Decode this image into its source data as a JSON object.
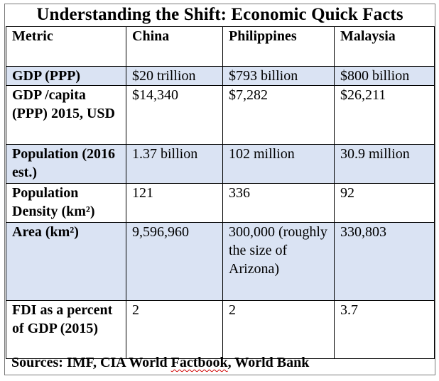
{
  "title": "Understanding the Shift: Economic Quick Facts",
  "columns": [
    "Metric",
    "China",
    "Philippines",
    "Malaysia"
  ],
  "rows": [
    {
      "metric": "GDP (PPP)",
      "china": "$20 trillion",
      "philippines": "$793 billion",
      "malaysia": "$800 billion"
    },
    {
      "metric": "GDP /capita (PPP) 2015, USD",
      "china": "$14,340",
      "philippines": "$7,282",
      "malaysia": "$26,211"
    },
    {
      "metric": "Population (2016 est.)",
      "china": "1.37 billion",
      "philippines": "102 million",
      "malaysia": "30.9 million"
    },
    {
      "metric": "Population Density (km²)",
      "china": "121",
      "philippines": "336",
      "malaysia": "92"
    },
    {
      "metric": "Area (km²)",
      "china": "9,596,960",
      "philippines": "300,000 (roughly the size of Arizona)",
      "malaysia": "330,803"
    },
    {
      "metric": "FDI as a percent of GDP (2015)",
      "china": "2",
      "philippines": "2",
      "malaysia": "3.7"
    }
  ],
  "sources": {
    "prefix": "Sources: IMF, CIA World ",
    "flagged_word": "Factbook",
    "suffix": ", World Bank"
  },
  "colors": {
    "row_shade": "#dae3f3",
    "row_plain": "#ffffff",
    "spellcheck_underline": "#d00000"
  }
}
